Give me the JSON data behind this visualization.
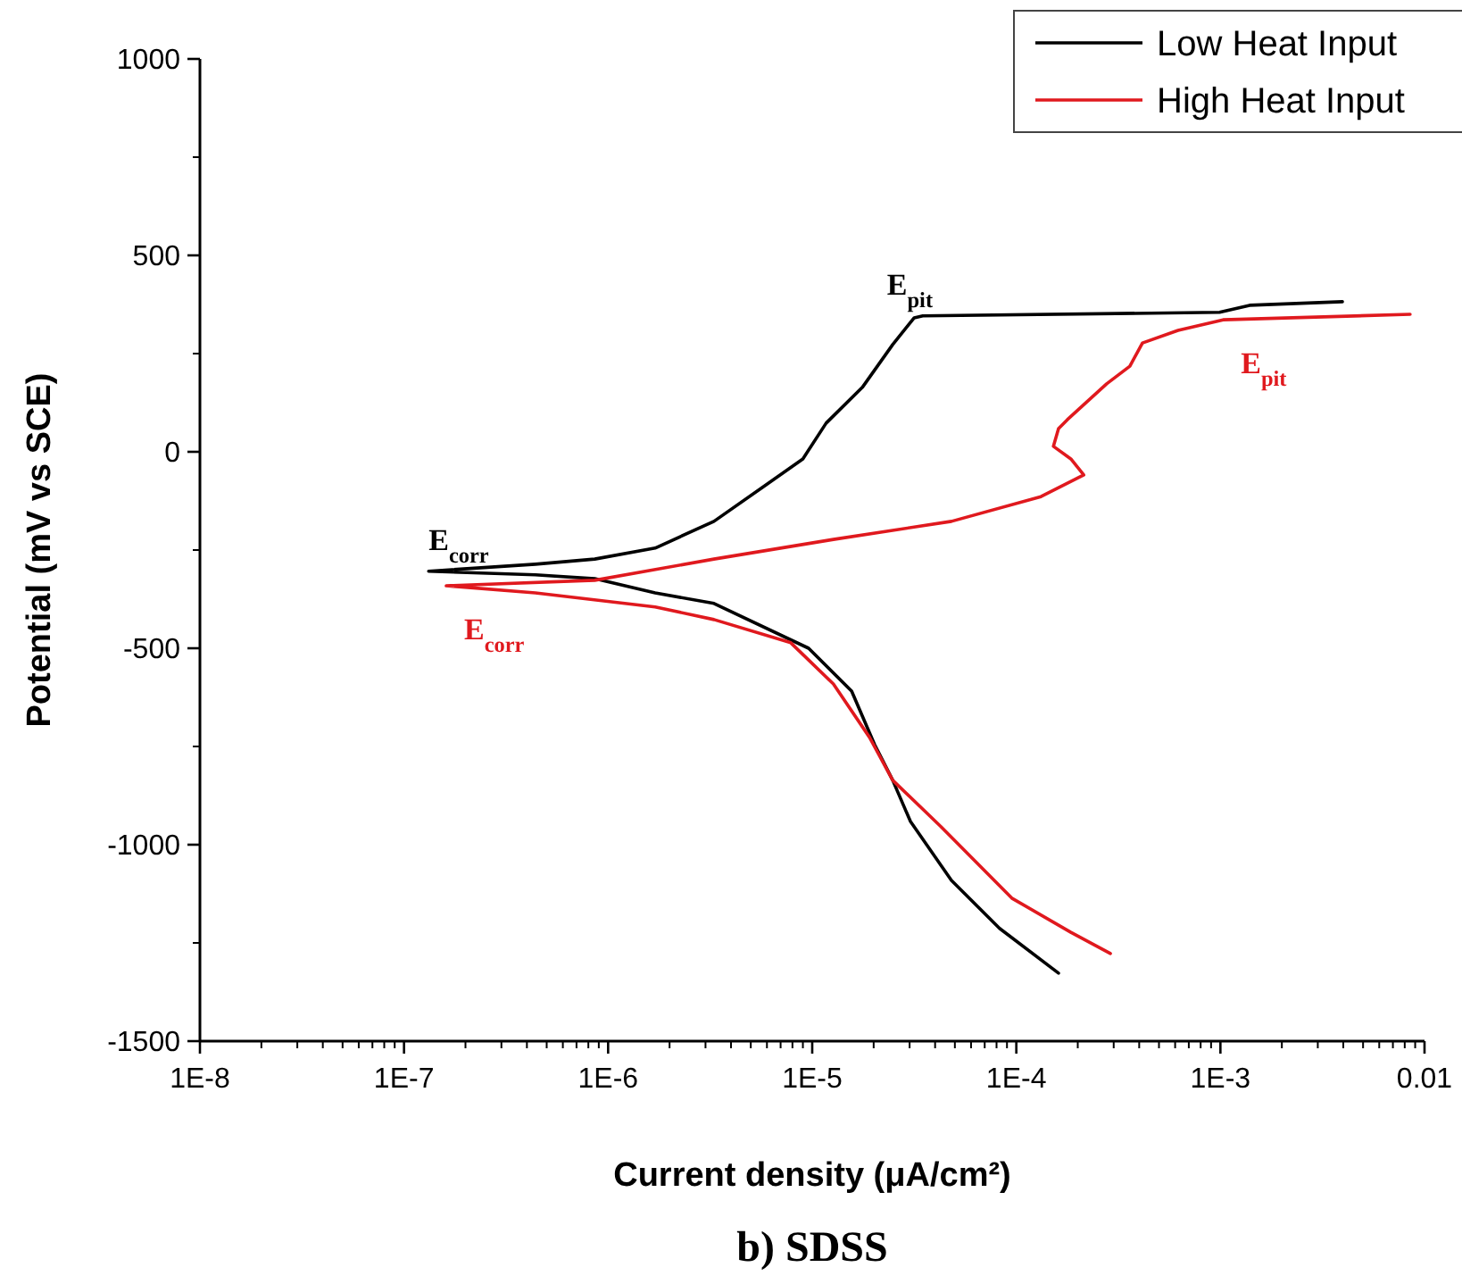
{
  "chart_data": {
    "type": "line",
    "title": "b) SDSS",
    "xlabel": "Current density (μA/cm²)",
    "ylabel": "Potential (mV vs SCE)",
    "log": "x",
    "xlim": [
      1e-08,
      0.01
    ],
    "xticks": [
      {
        "value": 1e-08,
        "label": "1E-8"
      },
      {
        "value": 1e-07,
        "label": "1E-7"
      },
      {
        "value": 1e-06,
        "label": "1E-6"
      },
      {
        "value": 1e-05,
        "label": "1E-5"
      },
      {
        "value": 0.0001,
        "label": "1E-4"
      },
      {
        "value": 0.001,
        "label": "1E-3"
      },
      0.01
    ],
    "ylim": [
      -1500,
      1000
    ],
    "yticks": [
      -1500,
      -1000,
      -500,
      0,
      500,
      1000
    ],
    "grid": false,
    "legend": "top right",
    "marker": "none",
    "line_style": "solid",
    "series": [
      {
        "name": "Low Heat Input",
        "color": "#000000",
        "x": [
          0.000161,
          8.28e-05,
          4.81e-05,
          3.03e-05,
          2.48e-05,
          2.02e-05,
          1.56e-05,
          9.6e-06,
          3.3e-06,
          1.7e-06,
          8.6e-07,
          4.4e-07,
          1.32e-07,
          4.4e-07,
          8.6e-07,
          1.7e-06,
          3.3e-06,
          5.69e-06,
          9e-06,
          1.17e-05,
          1.76e-05,
          2.48e-05,
          3.16e-05,
          3.48e-05,
          0.00099,
          0.00139,
          0.00396
        ],
        "values": [
          -1327,
          -1213,
          -1091,
          -941,
          -836,
          -745,
          -609,
          -500,
          -386,
          -359,
          -323,
          -313,
          -304,
          -286,
          -273,
          -245,
          -177,
          -91,
          -18,
          73,
          164,
          273,
          341,
          346,
          355,
          373,
          382
        ]
      },
      {
        "name": "High Heat Input",
        "color": "#e0191e",
        "x": [
          0.000289,
          0.000185,
          9.5e-05,
          4.27e-05,
          2.48e-05,
          1.91e-05,
          1.27e-05,
          7.85e-06,
          3.3e-06,
          1.7e-06,
          4.4e-07,
          1.61e-07,
          8.6e-07,
          3.3e-06,
          1.27e-05,
          4.81e-05,
          0.000132,
          0.000214,
          0.000185,
          0.000152,
          0.000161,
          0.000178,
          0.000277,
          0.00036,
          0.000415,
          0.00062,
          0.00103,
          0.0085
        ],
        "values": [
          -1277,
          -1223,
          -1136,
          -954,
          -836,
          -727,
          -591,
          -486,
          -427,
          -395,
          -359,
          -341,
          -327,
          -273,
          -223,
          -177,
          -114,
          -59,
          -18,
          14,
          59,
          82,
          173,
          218,
          277,
          309,
          336,
          350
        ]
      }
    ],
    "annotations": [
      {
        "text": "E$_{corr}$",
        "x": 1.32e-07,
        "y": -304
      },
      {
        "text": "E$_{corr}$",
        "x": 1.61e-07,
        "y": -341
      },
      {
        "text": "E$_{pit}$",
        "x": 3.48e-05,
        "y": 346
      },
      {
        "text": "E$_{pit}$",
        "x": 0.00103,
        "y": 336
      }
    ]
  }
}
